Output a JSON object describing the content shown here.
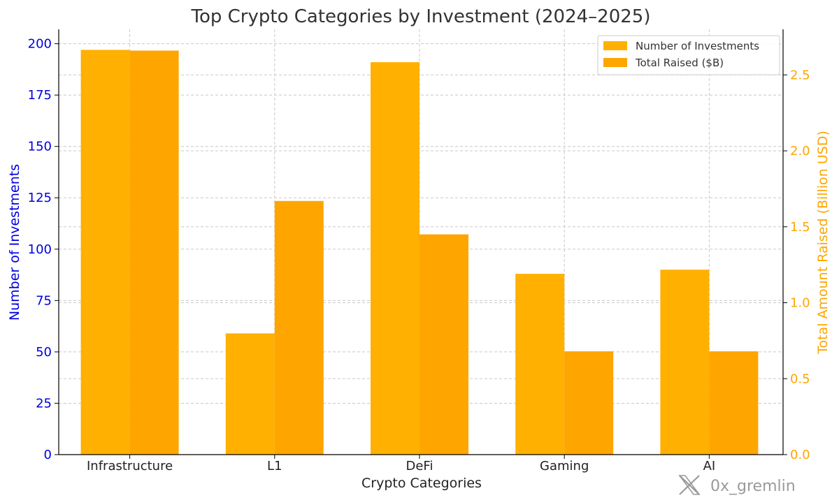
{
  "chart_data": {
    "type": "bar",
    "title": "Top Crypto Categories by Investment (2024–2025)",
    "xlabel": "Crypto Categories",
    "ylabel_left": "Number of Investments",
    "ylabel_right": "Total Amount Raised (Billion USD)",
    "categories": [
      "Infrastructure",
      "L1",
      "DeFi",
      "Gaming",
      "AI"
    ],
    "series": [
      {
        "name": "Number of Investments",
        "axis": "left",
        "values": [
          197,
          59,
          191,
          88,
          90
        ],
        "color": "#FFB000"
      },
      {
        "name": "Total Raised ($B)",
        "axis": "right",
        "values": [
          2.66,
          1.67,
          1.45,
          0.68,
          0.68
        ],
        "color": "#FFA500"
      }
    ],
    "ylim_left": [
      0,
      207
    ],
    "ylim_right": [
      0,
      2.8
    ],
    "yticks_left": [
      0,
      25,
      50,
      75,
      100,
      125,
      150,
      175,
      200
    ],
    "yticks_right": [
      "0.0",
      "0.5",
      "1.0",
      "1.5",
      "2.0",
      "2.5"
    ],
    "left_axis_color": "#0000E0",
    "right_axis_color": "#FFA500",
    "grid": true,
    "legend_position": "top-right"
  },
  "watermark": {
    "handle": "0x_gremlin",
    "icon": "x-logo-icon"
  }
}
